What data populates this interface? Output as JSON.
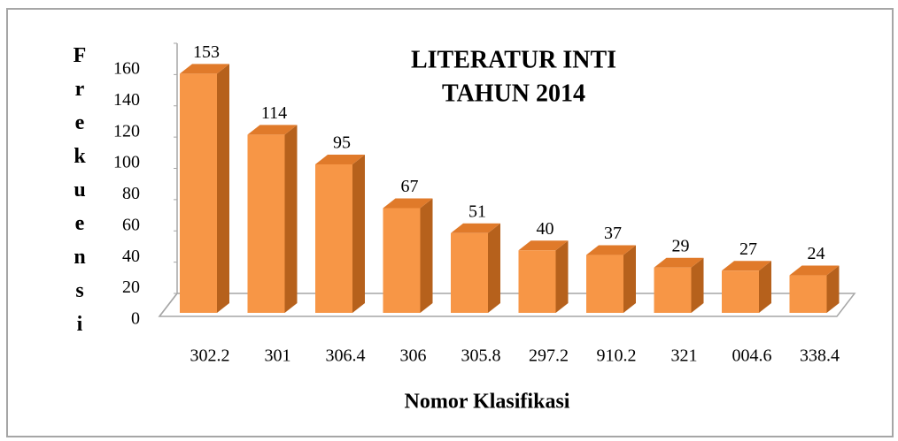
{
  "chart_data": {
    "type": "bar3d",
    "title": [
      "LITERATUR INTI",
      "TAHUN 2014"
    ],
    "xlabel": "Nomor Klasifikasi",
    "ylabel": "Frekuensi",
    "categories": [
      "302.2",
      "301",
      "306.4",
      "306",
      "305.8",
      "297.2",
      "910.2",
      "321",
      "004.6",
      "338.4"
    ],
    "values": [
      153,
      114,
      95,
      67,
      51,
      40,
      37,
      29,
      27,
      24
    ],
    "color": "#f79646",
    "ylim": [
      0,
      160
    ],
    "yticks": [
      0,
      20,
      40,
      60,
      80,
      100,
      120,
      140,
      160
    ]
  }
}
